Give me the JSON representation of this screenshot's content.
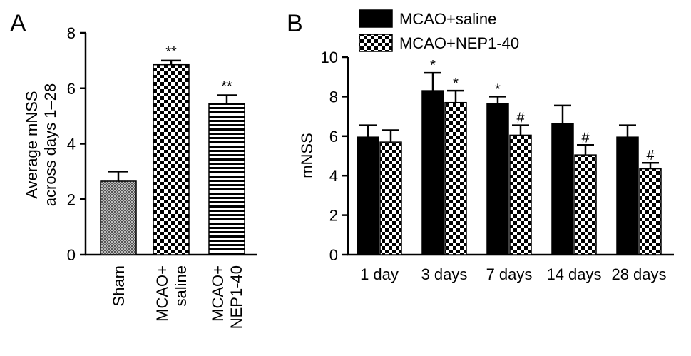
{
  "chart_data": [
    {
      "panel": "A",
      "type": "bar",
      "categories": [
        [
          "Sham"
        ],
        [
          "MCAO+",
          "saline"
        ],
        [
          "MCAO+",
          "NEP1-40"
        ]
      ],
      "values": [
        2.65,
        6.85,
        5.45
      ],
      "errors": [
        0.35,
        0.15,
        0.3
      ],
      "annotations": [
        "",
        "**",
        "**"
      ],
      "patterns": [
        "fine",
        "checker",
        "hlines"
      ],
      "ylabel": [
        "Average mNSS",
        "across days 1–28"
      ],
      "ylim": [
        0,
        8
      ],
      "yticks": [
        0,
        2,
        4,
        6,
        8
      ],
      "grid": false,
      "legend": "none"
    },
    {
      "panel": "B",
      "type": "bar",
      "categories": [
        "1 day",
        "3 days",
        "7 days",
        "14 days",
        "28 days"
      ],
      "series": [
        {
          "name": "MCAO+saline",
          "values": [
            5.95,
            8.3,
            7.65,
            6.65,
            5.95
          ],
          "errors": [
            0.6,
            0.9,
            0.35,
            0.9,
            0.6
          ],
          "annotations": [
            "",
            "*",
            "*",
            "",
            ""
          ],
          "pattern": "solid"
        },
        {
          "name": "MCAO+NEP1-40",
          "values": [
            5.7,
            7.7,
            6.05,
            5.05,
            4.35
          ],
          "errors": [
            0.6,
            0.6,
            0.5,
            0.5,
            0.3
          ],
          "annotations": [
            "",
            "*",
            "#",
            "#",
            "#"
          ],
          "pattern": "checker"
        }
      ],
      "ylabel": "mNSS",
      "ylim": [
        0,
        10
      ],
      "yticks": [
        0,
        2,
        4,
        6,
        8,
        10
      ],
      "grid": false,
      "legend": "top-left"
    }
  ]
}
